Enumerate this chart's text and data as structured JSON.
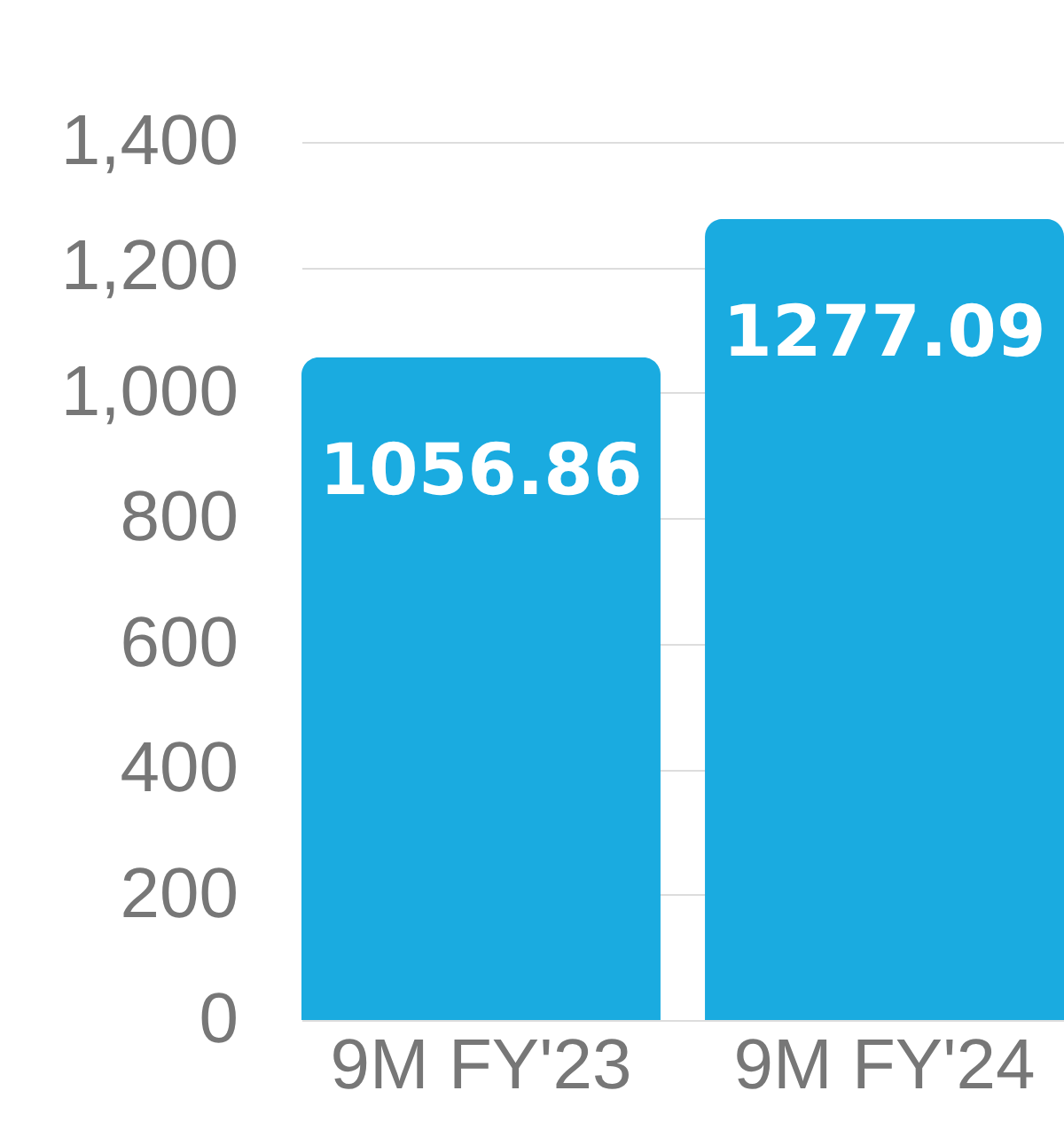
{
  "chart_data": {
    "type": "bar",
    "categories": [
      "9M FY'23",
      "9M FY'24"
    ],
    "values": [
      1056.86,
      1277.09
    ],
    "color": "#1aabe0",
    "ylim": [
      0,
      1400
    ],
    "yticks": [
      0,
      200,
      400,
      600,
      800,
      {
        "value": 1000,
        "label": "1,000"
      },
      {
        "value": 1200,
        "label": "1,200"
      },
      {
        "value": 1400,
        "label": "1,400"
      }
    ],
    "grid": "y",
    "data_labels": true
  }
}
